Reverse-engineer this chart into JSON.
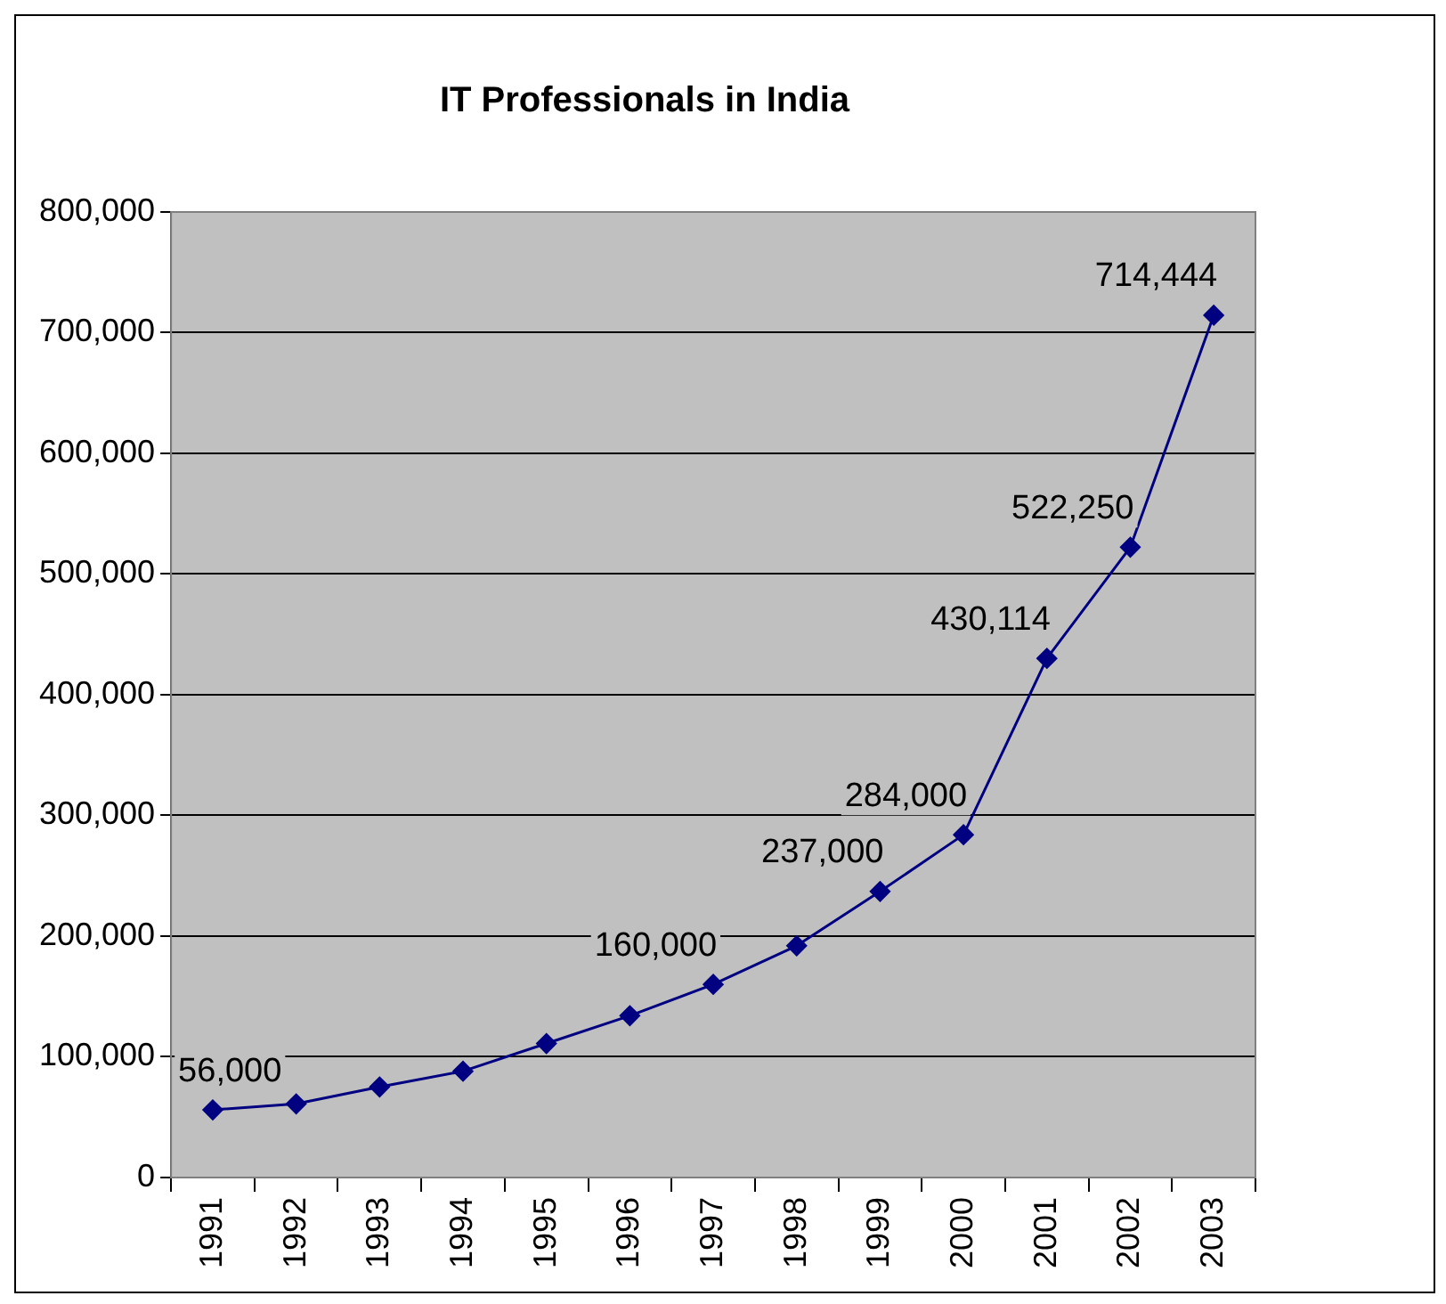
{
  "chart_data": {
    "type": "line",
    "title": "IT Professionals in India",
    "categories": [
      "1991",
      "1992",
      "1993",
      "1994",
      "1995",
      "1996",
      "1997",
      "1998",
      "1999",
      "2000",
      "2001",
      "2002",
      "2003"
    ],
    "series": [
      {
        "color": "#000080",
        "values": [
          56000,
          61000,
          75000,
          88000,
          111000,
          134000,
          160000,
          192000,
          237000,
          284000,
          430114,
          522250,
          714444
        ],
        "value_labels": [
          "56,000",
          null,
          null,
          null,
          null,
          null,
          "160,000",
          null,
          "237,000",
          "284,000",
          "430,114",
          "522,250",
          "714,444"
        ]
      }
    ],
    "ylim": [
      0,
      800000
    ],
    "yticks": [
      0,
      {
        "value": 100000,
        "label": "100,000"
      },
      {
        "value": 200000,
        "label": "200,000"
      },
      {
        "value": 300000,
        "label": "300,000"
      },
      {
        "value": 400000,
        "label": "400,000"
      },
      {
        "value": 500000,
        "label": "500,000"
      },
      {
        "value": 600000,
        "label": "600,000"
      },
      {
        "value": 700000,
        "label": "700,000"
      },
      {
        "value": 800000,
        "label": "800,000"
      }
    ],
    "grid": "y",
    "legend": false,
    "marker": "diamond",
    "line_style": "solid"
  }
}
